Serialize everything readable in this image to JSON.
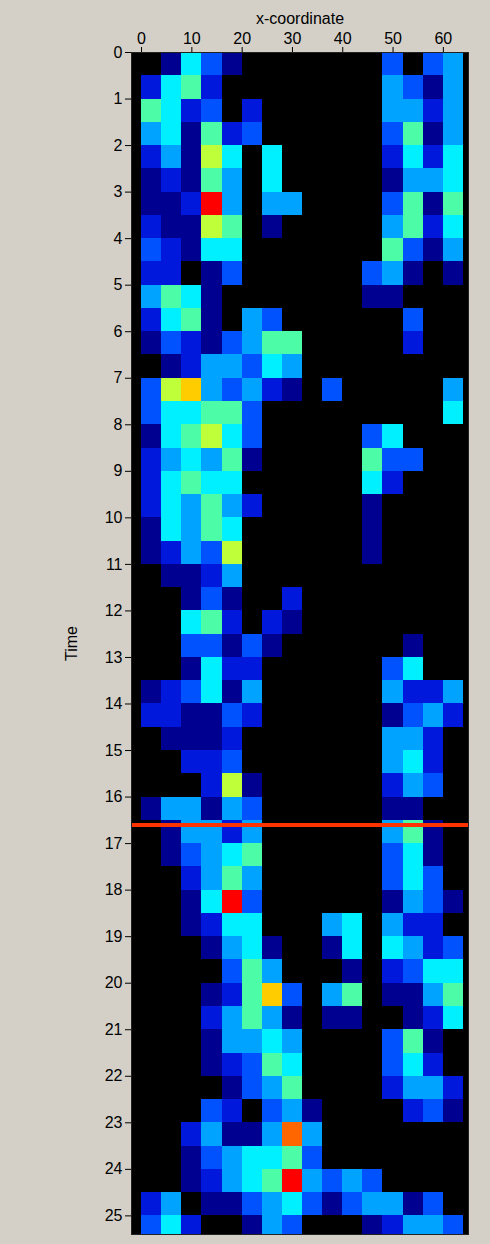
{
  "chart_data": {
    "type": "heatmap",
    "x_label": "x-coordinate",
    "y_label": "Time",
    "xlim": [
      -2,
      65
    ],
    "ylim": [
      0,
      25.4
    ],
    "xticks": [
      0,
      10,
      20,
      30,
      40,
      50,
      60
    ],
    "yticks": [
      0,
      1,
      2,
      3,
      4,
      5,
      6,
      7,
      8,
      9,
      10,
      11,
      12,
      13,
      14,
      15,
      16,
      17,
      18,
      19,
      20,
      21,
      22,
      23,
      24,
      25
    ],
    "x_bins": [
      0,
      4,
      8,
      12,
      16,
      20,
      24,
      28,
      32,
      36,
      40,
      44,
      48,
      52,
      56,
      60,
      64
    ],
    "y_bins": [
      0,
      0.5,
      1,
      1.5,
      2,
      2.5,
      3,
      3.5,
      4,
      4.5,
      5,
      5.5,
      6,
      6.5,
      7,
      7.5,
      8,
      8.5,
      9,
      9.5,
      10,
      10.5,
      11,
      11.5,
      12,
      12.5,
      13,
      13.5,
      14,
      14.5,
      15,
      15.5,
      16,
      16.5,
      17,
      17.5,
      18,
      18.5,
      19,
      19.5,
      20,
      20.5,
      21,
      21.5,
      22,
      22.5,
      23,
      23.5,
      24,
      24.5,
      25,
      25.5
    ],
    "zlim": [
      0,
      10
    ],
    "cells": [
      [
        0,
        1,
        5,
        3,
        1,
        0,
        0,
        0,
        0,
        0,
        0,
        0,
        3,
        0,
        3,
        4
      ],
      [
        2,
        5,
        6,
        2,
        0,
        0,
        0,
        0,
        0,
        0,
        0,
        0,
        4,
        3,
        1,
        4
      ],
      [
        6,
        5,
        2,
        3,
        0,
        2,
        0,
        0,
        0,
        0,
        0,
        0,
        4,
        4,
        2,
        4
      ],
      [
        4,
        5,
        1,
        6,
        2,
        3,
        0,
        0,
        0,
        0,
        0,
        0,
        3,
        6,
        1,
        4
      ],
      [
        2,
        4,
        1,
        7,
        5,
        0,
        5,
        0,
        0,
        0,
        0,
        0,
        2,
        5,
        2,
        5
      ],
      [
        1,
        2,
        1,
        6,
        4,
        0,
        5,
        0,
        0,
        0,
        0,
        0,
        1,
        4,
        4,
        5
      ],
      [
        1,
        1,
        2,
        10,
        4,
        0,
        4,
        4,
        0,
        0,
        0,
        0,
        3,
        6,
        1,
        6
      ],
      [
        2,
        1,
        1,
        7,
        6,
        0,
        1,
        0,
        0,
        0,
        0,
        0,
        4,
        6,
        2,
        5
      ],
      [
        3,
        2,
        1,
        5,
        5,
        0,
        0,
        0,
        0,
        0,
        0,
        0,
        6,
        3,
        1,
        4
      ],
      [
        2,
        2,
        0,
        1,
        3,
        0,
        0,
        0,
        0,
        0,
        0,
        3,
        4,
        1,
        0,
        1
      ],
      [
        4,
        6,
        5,
        1,
        0,
        0,
        0,
        0,
        0,
        0,
        0,
        1,
        1,
        0,
        0,
        0
      ],
      [
        2,
        5,
        6,
        1,
        0,
        4,
        3,
        0,
        0,
        0,
        0,
        0,
        0,
        3,
        0,
        0
      ],
      [
        1,
        3,
        2,
        1,
        3,
        4,
        6,
        6,
        0,
        0,
        0,
        0,
        0,
        2,
        0,
        0
      ],
      [
        0,
        1,
        2,
        4,
        4,
        3,
        5,
        4,
        0,
        0,
        0,
        0,
        0,
        0,
        0,
        0
      ],
      [
        3,
        7,
        8,
        4,
        3,
        4,
        2,
        1,
        0,
        3,
        0,
        0,
        0,
        0,
        0,
        4
      ],
      [
        3,
        5,
        5,
        6,
        6,
        3,
        0,
        0,
        0,
        0,
        0,
        0,
        0,
        0,
        0,
        5
      ],
      [
        1,
        5,
        6,
        7,
        5,
        3,
        0,
        0,
        0,
        0,
        0,
        3,
        5,
        0,
        0,
        0
      ],
      [
        2,
        4,
        5,
        4,
        6,
        1,
        0,
        0,
        0,
        0,
        0,
        6,
        3,
        3,
        0,
        0
      ],
      [
        2,
        5,
        6,
        5,
        5,
        0,
        0,
        0,
        0,
        0,
        0,
        5,
        2,
        0,
        0,
        0
      ],
      [
        2,
        5,
        4,
        6,
        4,
        2,
        0,
        0,
        0,
        0,
        0,
        1,
        0,
        0,
        0,
        0
      ],
      [
        1,
        5,
        4,
        6,
        5,
        0,
        0,
        0,
        0,
        0,
        0,
        1,
        0,
        0,
        0,
        0
      ],
      [
        1,
        2,
        4,
        3,
        7,
        0,
        0,
        0,
        0,
        0,
        0,
        1,
        0,
        0,
        0,
        0
      ],
      [
        0,
        1,
        1,
        2,
        4,
        0,
        0,
        0,
        0,
        0,
        0,
        0,
        0,
        0,
        0,
        0
      ],
      [
        0,
        0,
        1,
        3,
        1,
        0,
        0,
        2,
        0,
        0,
        0,
        0,
        0,
        0,
        0,
        0
      ],
      [
        0,
        0,
        5,
        6,
        2,
        0,
        2,
        1,
        0,
        0,
        0,
        0,
        0,
        0,
        0,
        0
      ],
      [
        0,
        0,
        3,
        3,
        1,
        3,
        1,
        0,
        0,
        0,
        0,
        0,
        0,
        1,
        0,
        0
      ],
      [
        0,
        0,
        1,
        5,
        2,
        2,
        0,
        0,
        0,
        0,
        0,
        0,
        3,
        5,
        0,
        0
      ],
      [
        1,
        2,
        3,
        5,
        1,
        4,
        0,
        0,
        0,
        0,
        0,
        0,
        4,
        2,
        2,
        4
      ],
      [
        2,
        2,
        1,
        1,
        3,
        2,
        0,
        0,
        0,
        0,
        0,
        0,
        1,
        3,
        4,
        2
      ],
      [
        0,
        1,
        1,
        1,
        2,
        0,
        0,
        0,
        0,
        0,
        0,
        0,
        4,
        4,
        2,
        0
      ],
      [
        0,
        0,
        2,
        2,
        3,
        0,
        0,
        0,
        0,
        0,
        0,
        0,
        4,
        5,
        2,
        0
      ],
      [
        0,
        0,
        0,
        2,
        7,
        1,
        0,
        0,
        0,
        0,
        0,
        0,
        2,
        4,
        3,
        0
      ],
      [
        1,
        4,
        4,
        1,
        4,
        3,
        0,
        0,
        0,
        0,
        0,
        0,
        1,
        1,
        0,
        0
      ],
      [
        0,
        1,
        4,
        4,
        2,
        4,
        0,
        0,
        0,
        0,
        0,
        0,
        4,
        6,
        1,
        0
      ],
      [
        0,
        1,
        3,
        4,
        5,
        6,
        0,
        0,
        0,
        0,
        0,
        0,
        3,
        5,
        1,
        0
      ],
      [
        0,
        0,
        2,
        4,
        6,
        4,
        0,
        0,
        0,
        0,
        0,
        0,
        3,
        5,
        3,
        0
      ],
      [
        0,
        0,
        1,
        5,
        10,
        3,
        0,
        0,
        0,
        0,
        0,
        0,
        1,
        4,
        3,
        1
      ],
      [
        0,
        0,
        1,
        2,
        5,
        5,
        0,
        0,
        0,
        4,
        5,
        0,
        4,
        2,
        2,
        0
      ],
      [
        0,
        0,
        0,
        1,
        4,
        5,
        1,
        0,
        0,
        1,
        5,
        0,
        5,
        4,
        2,
        3
      ],
      [
        0,
        0,
        0,
        0,
        3,
        6,
        4,
        0,
        0,
        0,
        1,
        0,
        2,
        3,
        5,
        5
      ],
      [
        0,
        0,
        0,
        1,
        2,
        6,
        8,
        3,
        0,
        4,
        6,
        0,
        1,
        1,
        4,
        6
      ],
      [
        0,
        0,
        0,
        2,
        4,
        6,
        4,
        1,
        0,
        1,
        1,
        0,
        0,
        1,
        2,
        5
      ],
      [
        0,
        0,
        0,
        1,
        4,
        4,
        5,
        4,
        0,
        0,
        0,
        0,
        3,
        6,
        1,
        0
      ],
      [
        0,
        0,
        0,
        1,
        2,
        3,
        6,
        5,
        0,
        0,
        0,
        0,
        3,
        5,
        2,
        0
      ],
      [
        0,
        0,
        0,
        0,
        1,
        3,
        4,
        6,
        0,
        0,
        0,
        0,
        2,
        4,
        4,
        2
      ],
      [
        0,
        0,
        0,
        3,
        2,
        0,
        3,
        4,
        1,
        0,
        0,
        0,
        0,
        2,
        3,
        1
      ],
      [
        0,
        0,
        2,
        4,
        1,
        1,
        4,
        9,
        4,
        0,
        0,
        0,
        0,
        0,
        0,
        0
      ],
      [
        0,
        0,
        1,
        3,
        4,
        5,
        5,
        6,
        3,
        0,
        0,
        0,
        0,
        0,
        0,
        0
      ],
      [
        0,
        0,
        1,
        2,
        4,
        5,
        6,
        10,
        4,
        3,
        4,
        3,
        0,
        0,
        0,
        0
      ],
      [
        2,
        4,
        0,
        1,
        1,
        3,
        4,
        5,
        3,
        1,
        3,
        4,
        4,
        1,
        3,
        0
      ],
      [
        3,
        5,
        2,
        0,
        0,
        1,
        4,
        3,
        0,
        0,
        0,
        1,
        2,
        4,
        4,
        3
      ]
    ],
    "annotations": [
      {
        "type": "hline",
        "y": 16.6,
        "color": "#ff3300"
      }
    ]
  }
}
